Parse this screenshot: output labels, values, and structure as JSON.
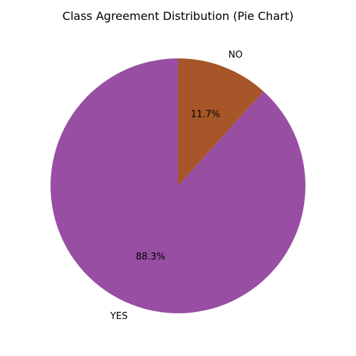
{
  "chart_data": {
    "type": "pie",
    "title": "Class Agreement Distribution (Pie Chart)",
    "slices": [
      {
        "label": "YES",
        "value": 88.3,
        "pct_label": "88.3%",
        "color": "#984ea3"
      },
      {
        "label": "NO",
        "value": 11.7,
        "pct_label": "11.7%",
        "color": "#a65628"
      }
    ],
    "start_angle_deg": 90,
    "direction": "counterclockwise"
  }
}
